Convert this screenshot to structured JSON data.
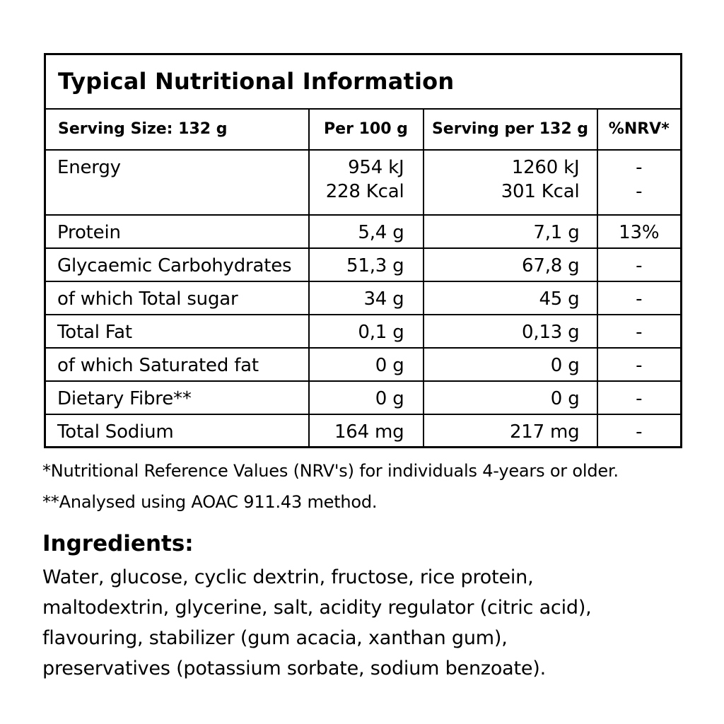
{
  "colors": {
    "text": "#000000",
    "background": "#ffffff",
    "border": "#000000"
  },
  "table": {
    "title": "Typical Nutritional Information",
    "columns": [
      "Serving Size: 132 g",
      "Per 100 g",
      "Serving per 132 g",
      "%NRV*"
    ],
    "rows": [
      {
        "label": "Energy",
        "per100": [
          "954 kJ",
          "228 Kcal"
        ],
        "serving": [
          "1260 kJ",
          "301 Kcal"
        ],
        "nrv": [
          "-",
          "-"
        ]
      },
      {
        "label": "Protein",
        "per100": "5,4 g",
        "serving": "7,1 g",
        "nrv": "13%"
      },
      {
        "label": "Glycaemic Carbohydrates",
        "per100": "51,3 g",
        "serving": "67,8 g",
        "nrv": "-"
      },
      {
        "label": "of which Total sugar",
        "per100": "34 g",
        "serving": "45 g",
        "nrv": "-"
      },
      {
        "label": "Total Fat",
        "per100": "0,1 g",
        "serving": "0,13 g",
        "nrv": "-"
      },
      {
        "label": "of which Saturated fat",
        "per100": "0 g",
        "serving": "0 g",
        "nrv": "-"
      },
      {
        "label": "Dietary Fibre**",
        "per100": "0 g",
        "serving": "0 g",
        "nrv": "-"
      },
      {
        "label": "Total Sodium",
        "per100": "164 mg",
        "serving": "217 mg",
        "nrv": "-"
      }
    ]
  },
  "footnotes": [
    "*Nutritional Reference Values (NRV's) for individuals 4-years or older.",
    "**Analysed using AOAC 911.43 method."
  ],
  "ingredients": {
    "heading": "Ingredients:",
    "lines": [
      "Water, glucose, cyclic dextrin, fructose, rice protein,",
      "maltodextrin, glycerine, salt, acidity regulator (citric acid),",
      "flavouring, stabilizer (gum acacia, xanthan gum),",
      "preservatives (potassium sorbate, sodium benzoate)."
    ]
  }
}
